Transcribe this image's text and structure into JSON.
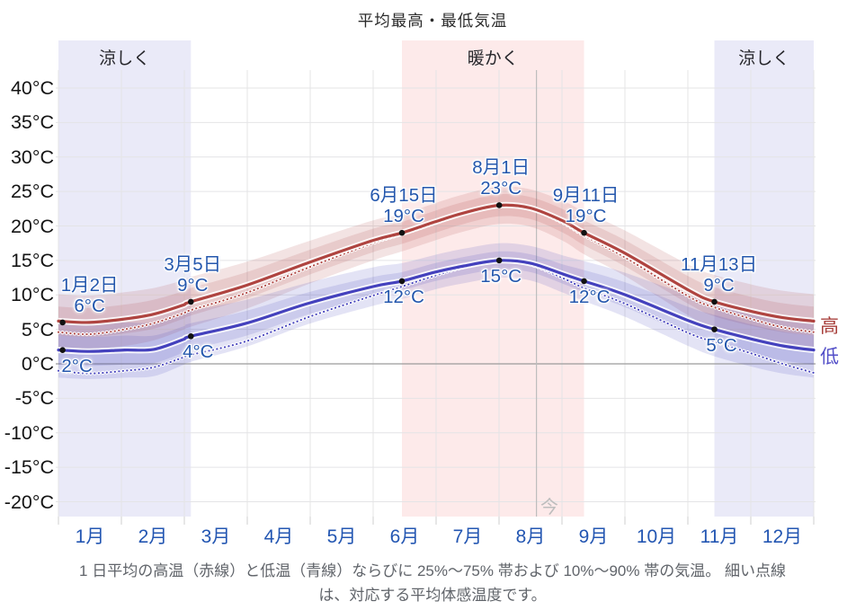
{
  "title": "平均最高・最低気温",
  "side_labels": {
    "high": "高",
    "low": "低"
  },
  "now_label": "今",
  "caption": {
    "line1": "1 日平均の高温（赤線）と低温（青線）ならびに 25%～75% 帯および 10%～90% 帯の気温。 細い点線",
    "line2": "は、対応する平均体感温度です。"
  },
  "colors": {
    "high_line": "#af4440",
    "low_line": "#4441bd",
    "high_band": "rgba(175,68,64,0.15)",
    "low_band": "rgba(68,65,189,0.15)",
    "cool_band_bg": "#eaeaf8",
    "warm_band_bg": "#fdeaea",
    "grid": "#e4e4e6",
    "zero_line": "#9b9b9b",
    "tick_line": "#cfcfcf",
    "now": "#bdbdbd",
    "marker_dot": "#111111",
    "label_blue": "#2457ad",
    "month_blue": "#2356b2",
    "side_high": "#a8403c",
    "side_low": "#5450c8"
  },
  "chart_data": {
    "type": "line",
    "title": "平均最高・最低気温",
    "x_axis": {
      "months": [
        "1月",
        "2月",
        "3月",
        "4月",
        "5月",
        "6月",
        "7月",
        "8月",
        "9月",
        "10月",
        "11月",
        "12月"
      ]
    },
    "y_axis": {
      "unit": "°C",
      "tick_labels": [
        "40°C",
        "35°C",
        "30°C",
        "25°C",
        "20°C",
        "15°C",
        "10°C",
        "5°C",
        "0°C",
        "-5°C",
        "-10°C",
        "-15°C",
        "-20°C"
      ],
      "tick_values": [
        40,
        35,
        30,
        25,
        20,
        15,
        10,
        5,
        0,
        -5,
        -10,
        -15,
        -20
      ],
      "range": [
        -22,
        42
      ]
    },
    "grid": true,
    "season_bands": [
      {
        "label": "涼しく",
        "start_day": 0,
        "end_day": 64,
        "kind": "cool"
      },
      {
        "label": "暖かく",
        "start_day": 166,
        "end_day": 254,
        "kind": "warm"
      },
      {
        "label": "涼しく",
        "start_day": 317,
        "end_day": 365,
        "kind": "cool"
      }
    ],
    "days": [
      0,
      15,
      32,
      46,
      60,
      64,
      91,
      121,
      152,
      166,
      182,
      196,
      213,
      228,
      244,
      254,
      274,
      305,
      317,
      335,
      350,
      365
    ],
    "series": [
      {
        "key": "high",
        "name": "平均最高気温（赤線）",
        "style": "solid",
        "values": [
          6.2,
          6.0,
          6.5,
          7.2,
          8.5,
          9.0,
          11.4,
          14.7,
          17.9,
          19.0,
          20.6,
          21.9,
          23.0,
          22.6,
          20.7,
          19.0,
          16.0,
          10.6,
          9.0,
          7.6,
          6.7,
          6.2
        ]
      },
      {
        "key": "high_feel",
        "name": "平均最高体感温度（点線）",
        "style": "dotted",
        "values": [
          4.6,
          4.3,
          5.0,
          5.9,
          7.3,
          7.8,
          10.3,
          14.0,
          17.5,
          18.8,
          20.4,
          21.8,
          23.0,
          22.5,
          20.4,
          18.6,
          15.4,
          9.7,
          8.2,
          6.5,
          5.3,
          4.6
        ]
      },
      {
        "key": "low",
        "name": "平均最低気温（青線）",
        "style": "solid",
        "values": [
          2.0,
          1.8,
          2.0,
          2.1,
          3.5,
          4.0,
          5.9,
          8.8,
          11.2,
          12.0,
          13.3,
          14.2,
          15.0,
          14.6,
          13.0,
          12.0,
          10.0,
          6.2,
          5.0,
          3.6,
          2.6,
          2.0
        ]
      },
      {
        "key": "low_feel",
        "name": "平均最低体感温度（点線）",
        "style": "dotted",
        "values": [
          -1.0,
          -1.4,
          -1.0,
          -0.5,
          0.9,
          1.3,
          3.3,
          6.8,
          9.9,
          11.2,
          12.8,
          14.0,
          15.0,
          14.4,
          12.4,
          11.0,
          8.7,
          4.4,
          3.2,
          1.5,
          0.0,
          -1.3
        ]
      }
    ],
    "bands": {
      "high_inner": [
        2.1,
        2.1,
        2.1,
        2.1,
        2.0,
        2.0,
        1.9,
        1.8,
        1.7,
        1.6,
        1.6,
        1.6,
        1.6,
        1.6,
        1.7,
        1.8,
        1.9,
        2.0,
        2.1,
        2.1,
        2.1,
        2.1
      ],
      "high_outer": [
        3.9,
        3.9,
        3.9,
        3.8,
        3.6,
        3.6,
        3.4,
        3.1,
        2.9,
        2.7,
        2.7,
        2.7,
        2.7,
        2.7,
        2.9,
        3.1,
        3.3,
        3.7,
        3.9,
        3.9,
        3.9,
        3.9
      ],
      "low_inner": [
        2.1,
        2.1,
        2.1,
        2.0,
        1.9,
        1.9,
        1.8,
        1.6,
        1.4,
        1.3,
        1.3,
        1.3,
        1.3,
        1.3,
        1.4,
        1.6,
        1.8,
        2.0,
        2.1,
        2.1,
        2.1,
        2.1
      ],
      "low_outer": [
        4.0,
        4.0,
        4.0,
        3.9,
        3.7,
        3.7,
        3.4,
        3.0,
        2.8,
        2.6,
        2.5,
        2.5,
        2.5,
        2.5,
        2.7,
        2.9,
        3.2,
        3.7,
        3.9,
        4.0,
        4.0,
        4.0
      ]
    },
    "markers": {
      "high": [
        {
          "day": 2,
          "value": 6,
          "date": "1月2日",
          "temp": "6°C",
          "dx": 30
        },
        {
          "day": 64,
          "value": 9,
          "date": "3月5日",
          "temp": "9°C",
          "dx": 2
        },
        {
          "day": 166,
          "value": 19,
          "date": "6月15日",
          "temp": "19°C",
          "dx": 2
        },
        {
          "day": 213,
          "value": 23,
          "date": "8月1日",
          "temp": "23°C",
          "dx": 2
        },
        {
          "day": 254,
          "value": 19,
          "date": "9月11日",
          "temp": "19°C",
          "dx": 2
        },
        {
          "day": 317,
          "value": 9,
          "date": "11月13日",
          "temp": "9°C",
          "dx": 5
        }
      ],
      "low": [
        {
          "day": 2,
          "value": 2,
          "temp": "2°C",
          "dx": 16
        },
        {
          "day": 64,
          "value": 4,
          "temp": "4°C",
          "dx": 8
        },
        {
          "day": 166,
          "value": 12,
          "temp": "12°C",
          "dx": 2
        },
        {
          "day": 213,
          "value": 15,
          "temp": "15°C",
          "dx": 2
        },
        {
          "day": 254,
          "value": 12,
          "temp": "12°C",
          "dx": 6
        },
        {
          "day": 317,
          "value": 5,
          "temp": "5°C",
          "dx": 8
        }
      ]
    },
    "now_day": 231
  }
}
